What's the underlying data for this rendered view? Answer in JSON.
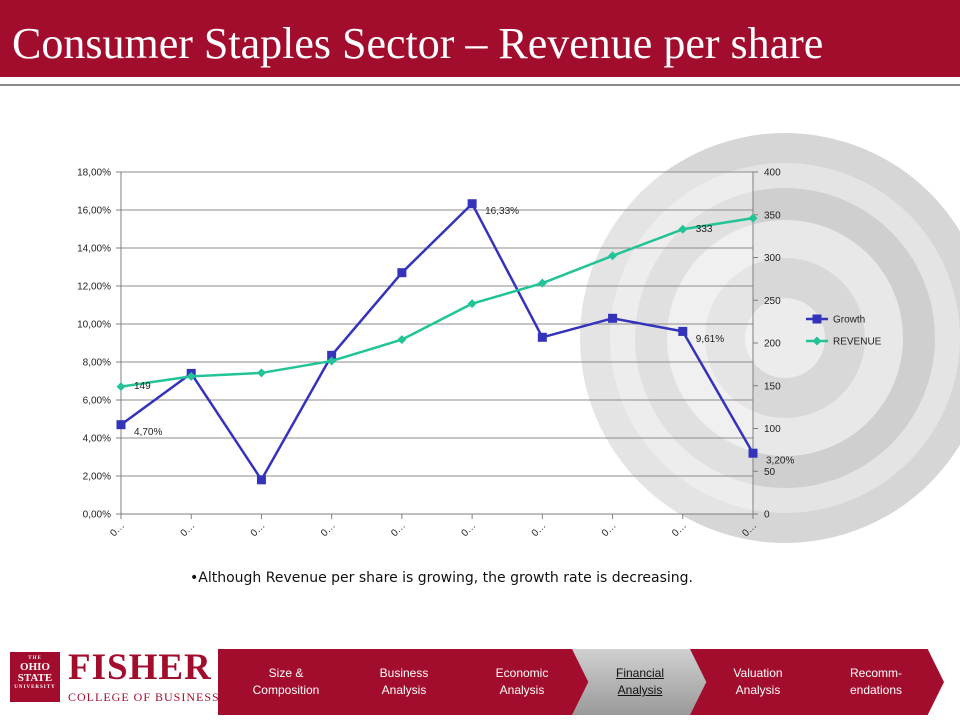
{
  "slide": {
    "title": "Consumer Staples Sector – Revenue per share",
    "bullet": "Although Revenue per share is growing, the growth rate is decreasing."
  },
  "colors": {
    "brand": "#a30d2d",
    "growth": "#3333bb",
    "revenue": "#22c497",
    "active_tab": "#b0b0b0"
  },
  "chart_data": {
    "type": "line",
    "categories": [
      "0…",
      "0…",
      "0…",
      "0…",
      "0…",
      "0…",
      "0…",
      "0…",
      "0…",
      "0…"
    ],
    "series": [
      {
        "name": "Growth",
        "axis": "left",
        "marker": "square",
        "values": [
          4.7,
          7.4,
          1.8,
          8.35,
          12.7,
          16.33,
          9.3,
          10.3,
          9.61,
          3.2
        ],
        "data_labels": [
          "4,70%",
          null,
          null,
          null,
          null,
          "16,33%",
          null,
          null,
          "9,61%",
          "3,20%"
        ]
      },
      {
        "name": "REVENUE",
        "axis": "right",
        "marker": "diamond",
        "values": [
          149,
          161,
          165,
          179,
          204,
          246,
          270,
          302,
          333,
          346
        ],
        "data_labels": [
          "149",
          null,
          null,
          null,
          null,
          null,
          null,
          null,
          "333",
          null
        ]
      }
    ],
    "y_left": {
      "min": 0,
      "max": 18,
      "step": 2,
      "tick_labels": [
        "0,00%",
        "2,00%",
        "4,00%",
        "6,00%",
        "8,00%",
        "10,00%",
        "12,00%",
        "14,00%",
        "16,00%",
        "18,00%"
      ]
    },
    "y_right": {
      "min": 0,
      "max": 400,
      "step": 50,
      "tick_labels": [
        "0",
        "50",
        "100",
        "150",
        "200",
        "250",
        "300",
        "350",
        "400"
      ]
    },
    "legend": [
      "Growth",
      "REVENUE"
    ],
    "legend_position": "right",
    "grid": true,
    "title": "",
    "xlabel": "",
    "ylabel": ""
  },
  "footer": {
    "logo": {
      "seal_lines": [
        "THE",
        "OHIO",
        "STATE",
        "UNIVERSITY"
      ],
      "name": "FISHER",
      "sub": "COLLEGE OF BUSINESS"
    },
    "nav_items": [
      {
        "label": "Size & Composition",
        "active": false
      },
      {
        "label": "Business Analysis",
        "active": false
      },
      {
        "label": "Economic Analysis",
        "active": false
      },
      {
        "label": "Financial Analysis",
        "active": true
      },
      {
        "label": "Valuation Analysis",
        "active": false
      },
      {
        "label": "Recomm-endations",
        "active": false
      }
    ]
  }
}
